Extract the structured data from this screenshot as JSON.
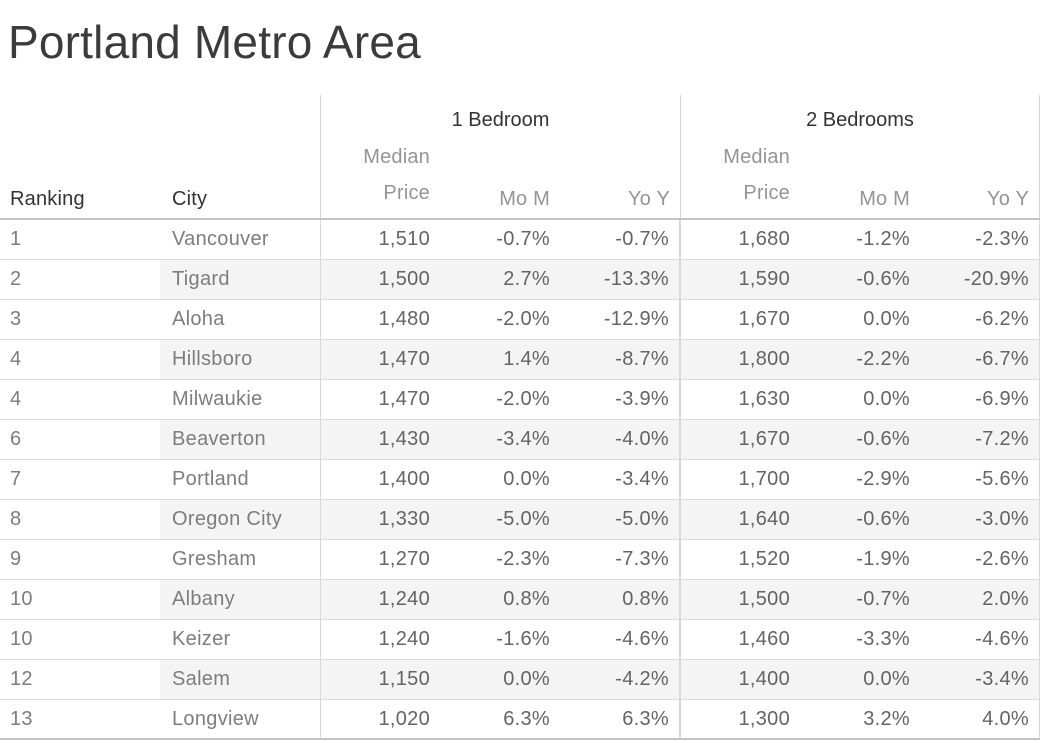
{
  "chart_data": {
    "type": "table",
    "title": "Portland Metro Area",
    "sections": [
      {
        "label": "1 Bedroom"
      },
      {
        "label": "2 Bedrooms"
      }
    ],
    "row_columns": [
      {
        "label": "Ranking"
      },
      {
        "label": "City"
      }
    ],
    "metric_columns": [
      {
        "label": "Median Price",
        "line1": "Median",
        "line2": "Price"
      },
      {
        "label": "Mo M"
      },
      {
        "label": "Yo Y"
      }
    ],
    "rows": [
      [
        "1",
        "Vancouver",
        "1,510",
        "-0.7%",
        "-0.7%",
        "1,680",
        "-1.2%",
        "-2.3%"
      ],
      [
        "2",
        "Tigard",
        "1,500",
        "2.7%",
        "-13.3%",
        "1,590",
        "-0.6%",
        "-20.9%"
      ],
      [
        "3",
        "Aloha",
        "1,480",
        "-2.0%",
        "-12.9%",
        "1,670",
        "0.0%",
        "-6.2%"
      ],
      [
        "4",
        "Hillsboro",
        "1,470",
        "1.4%",
        "-8.7%",
        "1,800",
        "-2.2%",
        "-6.7%"
      ],
      [
        "4",
        "Milwaukie",
        "1,470",
        "-2.0%",
        "-3.9%",
        "1,630",
        "0.0%",
        "-6.9%"
      ],
      [
        "6",
        "Beaverton",
        "1,430",
        "-3.4%",
        "-4.0%",
        "1,670",
        "-0.6%",
        "-7.2%"
      ],
      [
        "7",
        "Portland",
        "1,400",
        "0.0%",
        "-3.4%",
        "1,700",
        "-2.9%",
        "-5.6%"
      ],
      [
        "8",
        "Oregon City",
        "1,330",
        "-5.0%",
        "-5.0%",
        "1,640",
        "-0.6%",
        "-3.0%"
      ],
      [
        "9",
        "Gresham",
        "1,270",
        "-2.3%",
        "-7.3%",
        "1,520",
        "-1.9%",
        "-2.6%"
      ],
      [
        "10",
        "Albany",
        "1,240",
        "0.8%",
        "0.8%",
        "1,500",
        "-0.7%",
        "2.0%"
      ],
      [
        "10",
        "Keizer",
        "1,240",
        "-1.6%",
        "-4.6%",
        "1,460",
        "-3.3%",
        "-4.6%"
      ],
      [
        "12",
        "Salem",
        "1,150",
        "0.0%",
        "-4.2%",
        "1,400",
        "0.0%",
        "-3.4%"
      ],
      [
        "13",
        "Longview",
        "1,020",
        "6.3%",
        "6.3%",
        "1,300",
        "3.2%",
        "4.0%"
      ]
    ],
    "layout": {
      "grid": "horizontal row separators, vertical section dividers",
      "row_banding": "alternate rows shaded from City column to right edge",
      "numeric_alignment": "right",
      "text_alignment": "left"
    }
  },
  "colors": {
    "title_text": "#3b3b3b",
    "group_header_text": "#333333",
    "subheader_text": "#949494",
    "body_text": "#646464",
    "row_label_text": "#7d7d7d",
    "row_banding": "#f4f4f4",
    "grid_line": "#d9d9d9",
    "strong_line": "#c4c4c4",
    "background": "#ffffff"
  }
}
